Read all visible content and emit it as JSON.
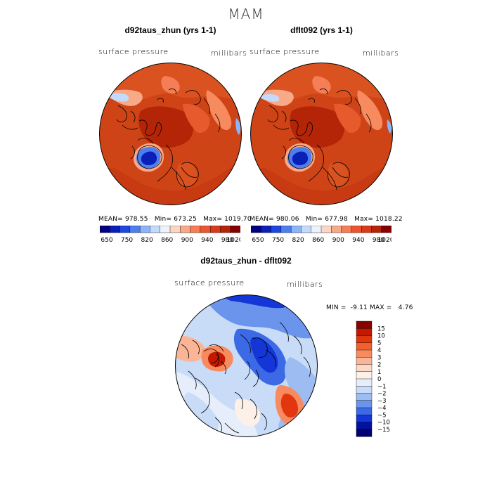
{
  "title": "MAM",
  "panels": [
    {
      "title": "d92taus_zhun (yrs 1-1)",
      "variable": "surface pressure",
      "units": "millibars",
      "stats": {
        "mean_label": "MEAN=",
        "mean": "978.55",
        "min_label": "Min=",
        "min": "673.25",
        "max_label": "Max=",
        "max": "1019.70"
      }
    },
    {
      "title": "dflt092 (yrs 1-1)",
      "variable": "surface pressure",
      "units": "millibars",
      "stats": {
        "mean_label": "MEAN=",
        "mean": "980.06",
        "min_label": "Min=",
        "min": "677.98",
        "max_label": "Max=",
        "max": "1018.22"
      }
    }
  ],
  "top_colorbar": {
    "labels": [
      "650",
      "750",
      "820",
      "860",
      "900",
      "940",
      "980",
      "1020"
    ],
    "colors": [
      "#00007f",
      "#0a1fb5",
      "#1f46e0",
      "#4c7ef0",
      "#8cb4f7",
      "#c4dafa",
      "#eef3fb",
      "#fbd6c4",
      "#f8aa88",
      "#f57e56",
      "#ec5530",
      "#d93a1a",
      "#b42508",
      "#850000"
    ]
  },
  "difference": {
    "title": "d92taus_zhun - dflt092",
    "variable": "surface pressure",
    "units": "millibars",
    "min_label": "MIN =",
    "min": "-9.11",
    "max_label": "MAX =",
    "max": "4.76",
    "colorbar_labels": [
      "15",
      "10",
      "5",
      "4",
      "3",
      "2",
      "1",
      "0",
      "−1",
      "−2",
      "−3",
      "−4",
      "−5",
      "−10",
      "−15"
    ],
    "colorbar_colors": [
      "#8a0000",
      "#c21a00",
      "#e2370e",
      "#f2602e",
      "#f78a5e",
      "#fab597",
      "#fcd9c6",
      "#fdf0e8",
      "#e6eefb",
      "#c8dbf7",
      "#9dbcf2",
      "#6b95ec",
      "#3c6ae6",
      "#1536d6",
      "#00139e",
      "#000072"
    ]
  }
}
